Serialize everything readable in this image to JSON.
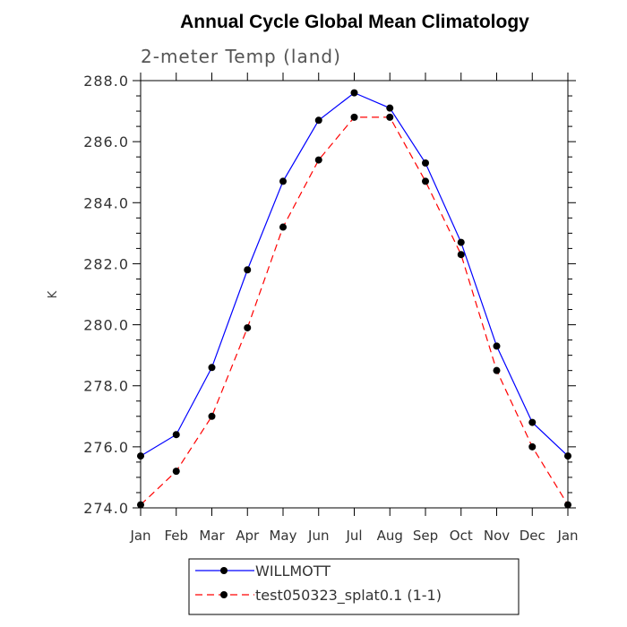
{
  "chart_data": {
    "type": "line",
    "title": "Annual Cycle Global Mean Climatology",
    "subtitle": "2-meter Temp (land)",
    "xlabel": "",
    "ylabel": "K",
    "categories": [
      "Jan",
      "Feb",
      "Mar",
      "Apr",
      "May",
      "Jun",
      "Jul",
      "Aug",
      "Sep",
      "Oct",
      "Nov",
      "Dec",
      "Jan"
    ],
    "ylim": [
      274.0,
      288.0
    ],
    "yticks": [
      "274.0",
      "276.0",
      "278.0",
      "280.0",
      "282.0",
      "284.0",
      "286.0",
      "288.0"
    ],
    "grid": false,
    "legend_position": "bottom",
    "series": [
      {
        "name": "WILLMOTT",
        "color": "#0000ff",
        "style": "solid",
        "marker": "circle",
        "values": [
          275.7,
          276.4,
          278.6,
          281.8,
          284.7,
          286.7,
          287.6,
          287.1,
          285.3,
          282.7,
          279.3,
          276.8,
          275.7
        ]
      },
      {
        "name": "test050323_splat0.1 (1-1)",
        "color": "#ff0000",
        "style": "dashed",
        "marker": "circle",
        "values": [
          274.1,
          275.2,
          277.0,
          279.9,
          283.2,
          285.4,
          286.8,
          286.8,
          284.7,
          282.3,
          278.5,
          276.0,
          274.1
        ]
      }
    ]
  }
}
